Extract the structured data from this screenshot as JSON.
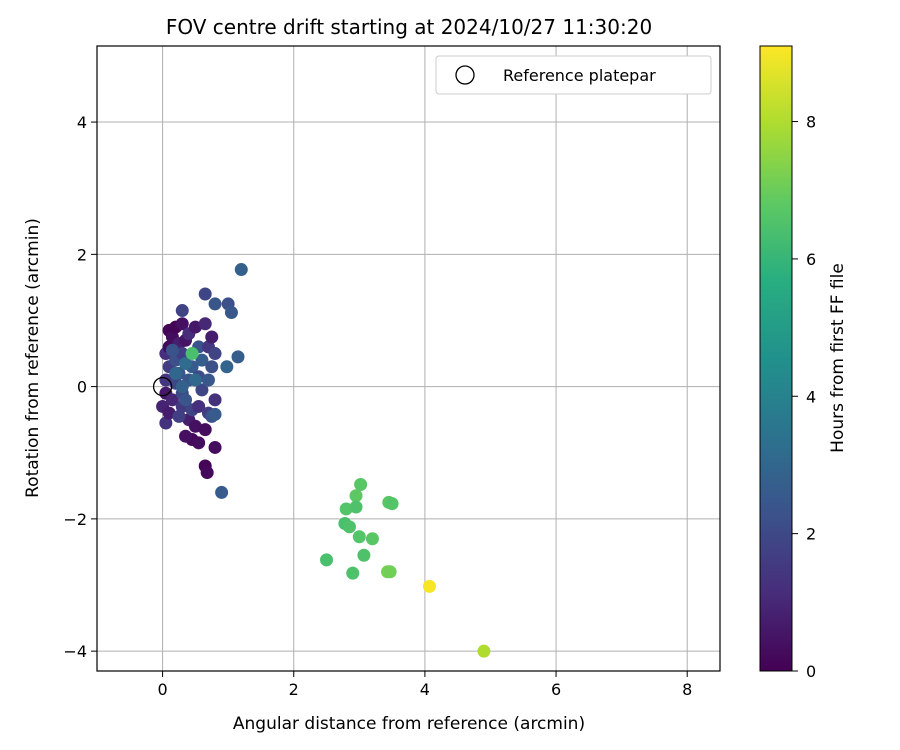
{
  "chart_data": {
    "type": "scatter",
    "title": "FOV centre drift starting at 2024/10/27 11:30:20",
    "xlabel": "Angular distance from reference (arcmin)",
    "ylabel": "Rotation from reference (arcmin)",
    "xlim": [
      -1,
      8.5
    ],
    "ylim": [
      -4.3,
      5.15
    ],
    "xticks": [
      0,
      2,
      4,
      6,
      8
    ],
    "yticks": [
      -4,
      -2,
      0,
      2,
      4
    ],
    "grid": true,
    "legend": {
      "position": "top-right",
      "entries": [
        "Reference platepar"
      ]
    },
    "colorbar": {
      "label": "Hours from first FF file",
      "range": [
        0,
        9.1
      ],
      "ticks": [
        0,
        2,
        4,
        6,
        8
      ],
      "colormap": "viridis"
    },
    "reference_point": {
      "x": 0,
      "y": 0
    },
    "points": [
      {
        "x": 0.05,
        "y": 0.5,
        "t": 1.2
      },
      {
        "x": 0.1,
        "y": 0.6,
        "t": 0.2
      },
      {
        "x": 0.1,
        "y": 0.85,
        "t": 0.1
      },
      {
        "x": 0.15,
        "y": 0.75,
        "t": 0.3
      },
      {
        "x": 0.2,
        "y": 0.9,
        "t": 0.1
      },
      {
        "x": 0.3,
        "y": 0.95,
        "t": 0.4
      },
      {
        "x": 0.25,
        "y": 0.65,
        "t": 0.8
      },
      {
        "x": 0.1,
        "y": 0.3,
        "t": 1.6
      },
      {
        "x": 0.05,
        "y": 0.1,
        "t": 1.4
      },
      {
        "x": 0.05,
        "y": -0.1,
        "t": 0.6
      },
      {
        "x": 0.0,
        "y": -0.3,
        "t": 0.9
      },
      {
        "x": 0.05,
        "y": -0.55,
        "t": 1.3
      },
      {
        "x": 0.1,
        "y": -0.4,
        "t": 0.7
      },
      {
        "x": 0.15,
        "y": -0.2,
        "t": 1.0
      },
      {
        "x": 0.2,
        "y": 0.05,
        "t": 1.9
      },
      {
        "x": 0.2,
        "y": 0.4,
        "t": 2.2
      },
      {
        "x": 0.25,
        "y": 0.2,
        "t": 2.5
      },
      {
        "x": 0.3,
        "y": 0.5,
        "t": 1.7
      },
      {
        "x": 0.35,
        "y": 0.7,
        "t": 0.5
      },
      {
        "x": 0.3,
        "y": 1.15,
        "t": 1.8
      },
      {
        "x": 0.3,
        "y": -0.1,
        "t": 2.0
      },
      {
        "x": 0.3,
        "y": -0.3,
        "t": 1.5
      },
      {
        "x": 0.4,
        "y": -0.5,
        "t": 0.8
      },
      {
        "x": 0.45,
        "y": -0.35,
        "t": 1.8
      },
      {
        "x": 0.4,
        "y": 0.1,
        "t": 2.4
      },
      {
        "x": 0.45,
        "y": 0.3,
        "t": 2.6
      },
      {
        "x": 0.4,
        "y": 0.8,
        "t": 1.1
      },
      {
        "x": 0.5,
        "y": 0.9,
        "t": 0.6
      },
      {
        "x": 0.55,
        "y": 0.6,
        "t": 2.3
      },
      {
        "x": 0.6,
        "y": 0.4,
        "t": 2.7
      },
      {
        "x": 0.55,
        "y": 0.15,
        "t": 2.1
      },
      {
        "x": 0.6,
        "y": -0.05,
        "t": 1.9
      },
      {
        "x": 0.55,
        "y": -0.3,
        "t": 1.2
      },
      {
        "x": 0.5,
        "y": -0.6,
        "t": 0.4
      },
      {
        "x": 0.65,
        "y": -0.65,
        "t": 0.3
      },
      {
        "x": 0.7,
        "y": -0.4,
        "t": 1.6
      },
      {
        "x": 0.7,
        "y": 0.1,
        "t": 2.5
      },
      {
        "x": 0.75,
        "y": 0.3,
        "t": 2.2
      },
      {
        "x": 0.7,
        "y": 0.6,
        "t": 1.4
      },
      {
        "x": 0.65,
        "y": 0.95,
        "t": 1.0
      },
      {
        "x": 0.75,
        "y": 0.75,
        "t": 0.7
      },
      {
        "x": 0.8,
        "y": 0.5,
        "t": 1.8
      },
      {
        "x": 0.8,
        "y": -0.2,
        "t": 1.3
      },
      {
        "x": 0.45,
        "y": -0.8,
        "t": 0.2
      },
      {
        "x": 0.35,
        "y": -0.75,
        "t": 0.4
      },
      {
        "x": 0.55,
        "y": -0.85,
        "t": 0.3
      },
      {
        "x": 0.65,
        "y": -1.2,
        "t": 0.1
      },
      {
        "x": 0.68,
        "y": -1.3,
        "t": 0.2
      },
      {
        "x": 0.8,
        "y": -0.92,
        "t": 0.3
      },
      {
        "x": 0.75,
        "y": -0.45,
        "t": 2.3
      },
      {
        "x": 0.8,
        "y": -0.42,
        "t": 2.6
      },
      {
        "x": 0.65,
        "y": 1.4,
        "t": 1.9
      },
      {
        "x": 0.8,
        "y": 1.25,
        "t": 2.4
      },
      {
        "x": 1.0,
        "y": 1.25,
        "t": 2.2
      },
      {
        "x": 1.05,
        "y": 1.12,
        "t": 2.5
      },
      {
        "x": 1.2,
        "y": 1.77,
        "t": 2.8
      },
      {
        "x": 1.15,
        "y": 0.45,
        "t": 2.7
      },
      {
        "x": 0.98,
        "y": 0.3,
        "t": 2.9
      },
      {
        "x": 0.9,
        "y": -1.6,
        "t": 2.6
      },
      {
        "x": 0.2,
        "y": 0.2,
        "t": 3.0
      },
      {
        "x": 0.35,
        "y": 0.35,
        "t": 3.2
      },
      {
        "x": 0.5,
        "y": 0.1,
        "t": 3.1
      },
      {
        "x": 0.3,
        "y": 0.0,
        "t": 2.8
      },
      {
        "x": 0.45,
        "y": 0.5,
        "t": 6.4
      },
      {
        "x": 0.15,
        "y": 0.55,
        "t": 2.3
      },
      {
        "x": 0.25,
        "y": -0.45,
        "t": 1.7
      },
      {
        "x": 0.35,
        "y": -0.2,
        "t": 2.4
      },
      {
        "x": 3.02,
        "y": -1.48,
        "t": 6.7
      },
      {
        "x": 2.95,
        "y": -1.65,
        "t": 6.8
      },
      {
        "x": 3.45,
        "y": -1.75,
        "t": 6.7
      },
      {
        "x": 3.5,
        "y": -1.77,
        "t": 6.6
      },
      {
        "x": 2.8,
        "y": -1.85,
        "t": 6.6
      },
      {
        "x": 2.95,
        "y": -1.82,
        "t": 6.5
      },
      {
        "x": 2.78,
        "y": -2.07,
        "t": 6.4
      },
      {
        "x": 2.85,
        "y": -2.12,
        "t": 6.5
      },
      {
        "x": 3.0,
        "y": -2.27,
        "t": 6.6
      },
      {
        "x": 3.2,
        "y": -2.3,
        "t": 6.7
      },
      {
        "x": 3.07,
        "y": -2.55,
        "t": 6.5
      },
      {
        "x": 2.5,
        "y": -2.62,
        "t": 6.4
      },
      {
        "x": 2.9,
        "y": -2.82,
        "t": 6.5
      },
      {
        "x": 3.43,
        "y": -2.8,
        "t": 7.2
      },
      {
        "x": 3.47,
        "y": -2.8,
        "t": 7.1
      },
      {
        "x": 4.07,
        "y": -3.02,
        "t": 9.0
      },
      {
        "x": 4.9,
        "y": -4.0,
        "t": 8.0
      }
    ]
  }
}
